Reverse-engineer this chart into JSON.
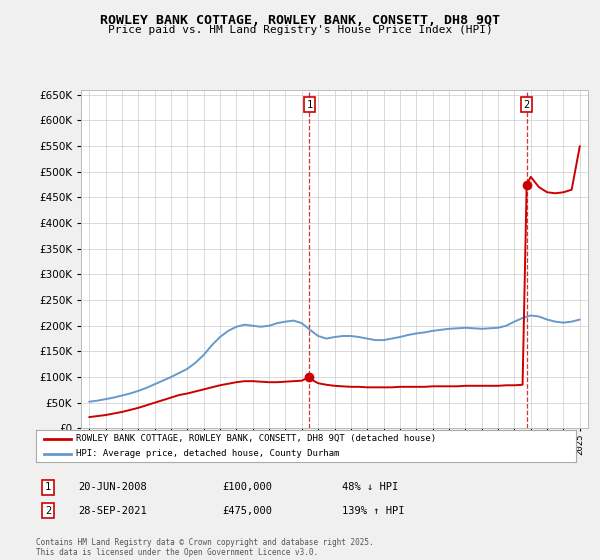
{
  "title": "ROWLEY BANK COTTAGE, ROWLEY BANK, CONSETT, DH8 9QT",
  "subtitle": "Price paid vs. HM Land Registry's House Price Index (HPI)",
  "legend_label_red": "ROWLEY BANK COTTAGE, ROWLEY BANK, CONSETT, DH8 9QT (detached house)",
  "legend_label_blue": "HPI: Average price, detached house, County Durham",
  "annotation1_label": "1",
  "annotation1_date": "20-JUN-2008",
  "annotation1_price": "£100,000",
  "annotation1_hpi": "48% ↓ HPI",
  "annotation1_year": 2008.47,
  "annotation2_label": "2",
  "annotation2_date": "28-SEP-2021",
  "annotation2_price": "£475,000",
  "annotation2_hpi": "139% ↑ HPI",
  "annotation2_year": 2021.75,
  "footer": "Contains HM Land Registry data © Crown copyright and database right 2025.\nThis data is licensed under the Open Government Licence v3.0.",
  "red_color": "#cc0000",
  "blue_color": "#6699cc",
  "background_color": "#f0f0f0",
  "plot_bg_color": "#ffffff",
  "grid_color": "#cccccc",
  "ylim": [
    0,
    660000
  ],
  "xlim_start": 1994.5,
  "xlim_end": 2025.5,
  "hpi_x": [
    1995.0,
    1995.5,
    1996.0,
    1996.5,
    1997.0,
    1997.5,
    1998.0,
    1998.5,
    1999.0,
    1999.5,
    2000.0,
    2000.5,
    2001.0,
    2001.5,
    2002.0,
    2002.5,
    2003.0,
    2003.5,
    2004.0,
    2004.5,
    2005.0,
    2005.5,
    2006.0,
    2006.5,
    2007.0,
    2007.5,
    2008.0,
    2008.5,
    2009.0,
    2009.5,
    2010.0,
    2010.5,
    2011.0,
    2011.5,
    2012.0,
    2012.5,
    2013.0,
    2013.5,
    2014.0,
    2014.5,
    2015.0,
    2015.5,
    2016.0,
    2016.5,
    2017.0,
    2017.5,
    2018.0,
    2018.5,
    2019.0,
    2019.5,
    2020.0,
    2020.5,
    2021.0,
    2021.5,
    2022.0,
    2022.5,
    2023.0,
    2023.5,
    2024.0,
    2024.5,
    2025.0
  ],
  "hpi_y": [
    52000,
    54000,
    57000,
    60000,
    64000,
    68000,
    73000,
    79000,
    86000,
    93000,
    100000,
    108000,
    116000,
    128000,
    143000,
    162000,
    178000,
    190000,
    198000,
    202000,
    200000,
    198000,
    200000,
    205000,
    208000,
    210000,
    205000,
    192000,
    180000,
    175000,
    178000,
    180000,
    180000,
    178000,
    175000,
    172000,
    172000,
    175000,
    178000,
    182000,
    185000,
    187000,
    190000,
    192000,
    194000,
    195000,
    196000,
    195000,
    194000,
    195000,
    196000,
    200000,
    208000,
    215000,
    220000,
    218000,
    212000,
    208000,
    206000,
    208000,
    212000
  ],
  "red_x": [
    1995.0,
    1995.5,
    1996.0,
    1996.5,
    1997.0,
    1997.5,
    1998.0,
    1998.5,
    1999.0,
    1999.5,
    2000.0,
    2000.5,
    2001.0,
    2001.5,
    2002.0,
    2002.5,
    2003.0,
    2003.5,
    2004.0,
    2004.5,
    2005.0,
    2005.5,
    2006.0,
    2006.5,
    2007.0,
    2007.5,
    2008.0,
    2008.47,
    2008.6,
    2009.0,
    2009.5,
    2010.0,
    2010.5,
    2011.0,
    2011.5,
    2012.0,
    2012.5,
    2013.0,
    2013.5,
    2014.0,
    2014.5,
    2015.0,
    2015.5,
    2016.0,
    2016.5,
    2017.0,
    2017.5,
    2018.0,
    2018.5,
    2019.0,
    2019.5,
    2020.0,
    2020.5,
    2021.0,
    2021.5,
    2021.75,
    2022.0,
    2022.5,
    2023.0,
    2023.5,
    2024.0,
    2024.5,
    2025.0
  ],
  "red_y": [
    22000,
    24000,
    26000,
    29000,
    32000,
    36000,
    40000,
    45000,
    50000,
    55000,
    60000,
    65000,
    68000,
    72000,
    76000,
    80000,
    84000,
    87000,
    90000,
    92000,
    92000,
    91000,
    90000,
    90000,
    91000,
    92000,
    93000,
    100000,
    95000,
    88000,
    85000,
    83000,
    82000,
    81000,
    81000,
    80000,
    80000,
    80000,
    80000,
    81000,
    81000,
    81000,
    81000,
    82000,
    82000,
    82000,
    82000,
    83000,
    83000,
    83000,
    83000,
    83000,
    84000,
    84000,
    85000,
    475000,
    490000,
    470000,
    460000,
    458000,
    460000,
    465000,
    550000
  ]
}
